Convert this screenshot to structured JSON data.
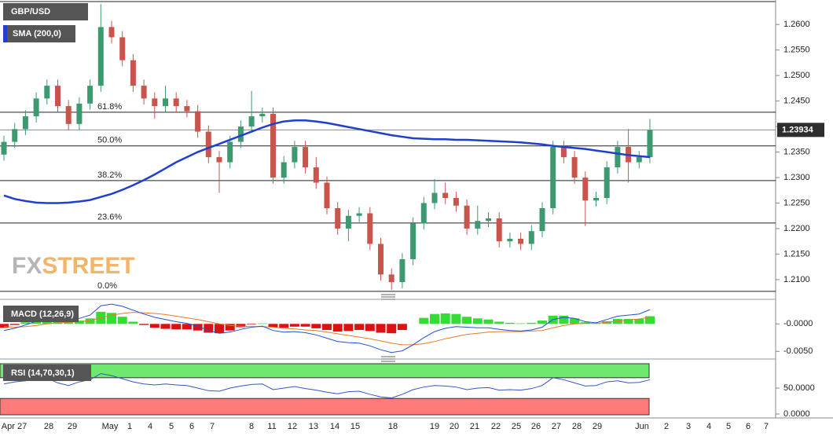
{
  "chart_data": [
    {
      "type": "candlestick",
      "title": "GBP/USD",
      "open": [
        1.2345,
        1.237,
        1.2395,
        1.242,
        1.2455,
        1.248,
        1.244,
        1.2405,
        1.2445,
        1.248,
        1.2595,
        1.2575,
        1.253,
        1.248,
        1.2455,
        1.244,
        1.2455,
        1.244,
        1.243,
        1.239,
        1.234,
        1.233,
        1.237,
        1.24,
        1.242,
        1.2425,
        1.23,
        1.233,
        1.236,
        1.232,
        1.229,
        1.224,
        1.22,
        1.2225,
        1.223,
        1.217,
        1.211,
        1.2095,
        1.214,
        1.221,
        1.225,
        1.227,
        1.226,
        1.2245,
        1.22,
        1.2215,
        1.222,
        1.2175,
        1.218,
        1.217,
        1.2195,
        1.224,
        1.236,
        1.234,
        1.23,
        1.2255,
        1.226,
        1.232,
        1.236,
        1.233,
        1.234
      ],
      "high": [
        1.2382,
        1.2407,
        1.2432,
        1.2467,
        1.2492,
        1.2492,
        1.2452,
        1.2457,
        1.2492,
        1.264,
        1.2607,
        1.2587,
        1.2542,
        1.2492,
        1.2467,
        1.248,
        1.2467,
        1.2452,
        1.2442,
        1.2402,
        1.2352,
        1.2382,
        1.2412,
        1.247,
        1.2437,
        1.2437,
        1.2342,
        1.2372,
        1.2372,
        1.234,
        1.2302,
        1.2252,
        1.2237,
        1.2242,
        1.2242,
        1.2182,
        1.2122,
        1.2152,
        1.2222,
        1.2262,
        1.2297,
        1.229,
        1.2272,
        1.2257,
        1.2245,
        1.2232,
        1.2232,
        1.2192,
        1.2192,
        1.2207,
        1.2252,
        1.2372,
        1.2372,
        1.2352,
        1.2312,
        1.2272,
        1.2332,
        1.2372,
        1.2395,
        1.2352,
        1.2415
      ],
      "low": [
        1.2333,
        1.2358,
        1.2383,
        1.2408,
        1.2443,
        1.2428,
        1.2393,
        1.2393,
        1.2433,
        1.2468,
        1.2563,
        1.2518,
        1.2468,
        1.2443,
        1.2415,
        1.2428,
        1.2428,
        1.2418,
        1.2378,
        1.2328,
        1.227,
        1.2318,
        1.2358,
        1.2388,
        1.2408,
        1.2288,
        1.2288,
        1.2318,
        1.2308,
        1.2278,
        1.2228,
        1.2188,
        1.2175,
        1.2213,
        1.2158,
        1.2098,
        1.208,
        1.2083,
        1.2128,
        1.2198,
        1.2238,
        1.2248,
        1.2233,
        1.2188,
        1.2188,
        1.2203,
        1.2163,
        1.2163,
        1.2158,
        1.2158,
        1.2183,
        1.2228,
        1.2328,
        1.2288,
        1.2205,
        1.2243,
        1.2248,
        1.2308,
        1.229,
        1.2318,
        1.2328
      ],
      "close": [
        1.237,
        1.2395,
        1.242,
        1.2455,
        1.248,
        1.244,
        1.2405,
        1.2445,
        1.248,
        1.2595,
        1.2575,
        1.253,
        1.248,
        1.2455,
        1.244,
        1.2455,
        1.244,
        1.243,
        1.239,
        1.234,
        1.233,
        1.237,
        1.24,
        1.242,
        1.2425,
        1.23,
        1.233,
        1.236,
        1.232,
        1.229,
        1.224,
        1.22,
        1.2225,
        1.223,
        1.217,
        1.211,
        1.2095,
        1.214,
        1.221,
        1.225,
        1.227,
        1.226,
        1.2245,
        1.22,
        1.2215,
        1.222,
        1.2175,
        1.218,
        1.217,
        1.2195,
        1.224,
        1.236,
        1.234,
        1.23,
        1.2255,
        1.226,
        1.232,
        1.236,
        1.233,
        1.234,
        1.2393
      ],
      "up_color": "#3d9a70",
      "down_color": "#c9544c",
      "sma": {
        "name": "SMA (200,0)",
        "color": "#1f3fd0",
        "values": [
          1.2265,
          1.2258,
          1.2254,
          1.2251,
          1.225,
          1.225,
          1.2251,
          1.2253,
          1.2256,
          1.2262,
          1.2268,
          1.2276,
          1.2285,
          1.2295,
          1.2306,
          1.2318,
          1.233,
          1.234,
          1.235,
          1.2358,
          1.2366,
          1.2374,
          1.2382,
          1.239,
          1.2398,
          1.2405,
          1.241,
          1.2412,
          1.2412,
          1.241,
          1.2407,
          1.2403,
          1.2399,
          1.2395,
          1.2391,
          1.2387,
          1.2383,
          1.238,
          1.2377,
          1.2376,
          1.2375,
          1.2375,
          1.2374,
          1.2374,
          1.2373,
          1.2372,
          1.2371,
          1.237,
          1.2369,
          1.2367,
          1.2365,
          1.2362,
          1.236,
          1.2358,
          1.2356,
          1.2353,
          1.235,
          1.2347,
          1.2344,
          1.2342,
          1.234
        ]
      },
      "ylim": [
        1.2066,
        1.2648
      ],
      "yticks": [
        {
          "value": 1.21,
          "label": "1.2100"
        },
        {
          "value": 1.215,
          "label": "1.2150"
        },
        {
          "value": 1.22,
          "label": "1.2200"
        },
        {
          "value": 1.225,
          "label": "1.2250"
        },
        {
          "value": 1.23,
          "label": "1.2300"
        },
        {
          "value": 1.235,
          "label": "1.2350"
        },
        {
          "value": 1.24,
          "label": "1.2400"
        },
        {
          "value": 1.245,
          "label": "1.2450"
        },
        {
          "value": 1.25,
          "label": "1.2500"
        },
        {
          "value": 1.255,
          "label": "1.2550"
        },
        {
          "value": 1.26,
          "label": "1.2600"
        }
      ],
      "fib_levels": [
        {
          "value": 1.2428,
          "label": "61.8%"
        },
        {
          "value": 1.2362,
          "label": "50.0%"
        },
        {
          "value": 1.2294,
          "label": "38.2%"
        },
        {
          "value": 1.2211,
          "label": "23.6%"
        },
        {
          "value": 1.2077,
          "label": "0.0%"
        }
      ],
      "last_price": 1.23934,
      "watermark": [
        "FX",
        "STREET"
      ],
      "x_labels": [
        "Apr 27",
        "28",
        "29",
        "May",
        "1",
        "4",
        "5",
        "6",
        "7",
        "8",
        "11",
        "12",
        "13",
        "14",
        "15",
        "18",
        "19",
        "20",
        "21",
        "22",
        "25",
        "26",
        "27",
        "28",
        "29",
        "Jun",
        "2",
        "3",
        "4",
        "5",
        "6",
        "7"
      ]
    },
    {
      "type": "macd",
      "title": "MACD (12,26,9)",
      "macd_color": "#2050d8",
      "signal_color": "#e87a2a",
      "up_color": "#33dd33",
      "down_color": "#dd1111",
      "macd": [
        -0.0012,
        -0.0008,
        -0.0002,
        0.0005,
        0.0012,
        0.001,
        0.0006,
        0.001,
        0.0016,
        0.0033,
        0.0036,
        0.0032,
        0.0025,
        0.0018,
        0.0012,
        0.0008,
        0.0004,
        0.0001,
        -0.0004,
        -0.0012,
        -0.0017,
        -0.0015,
        -0.001,
        -0.0006,
        -0.0004,
        -0.0012,
        -0.0015,
        -0.0014,
        -0.0016,
        -0.002,
        -0.0026,
        -0.0032,
        -0.0034,
        -0.0035,
        -0.004,
        -0.0047,
        -0.0052,
        -0.0049,
        -0.0038,
        -0.0025,
        -0.0014,
        -0.0008,
        -0.0005,
        -0.0006,
        -0.0007,
        -0.0007,
        -0.001,
        -0.0012,
        -0.0013,
        -0.0011,
        -0.0006,
        0.0008,
        0.0012,
        0.001,
        0.0004,
        0.0002,
        0.0008,
        0.0014,
        0.0016,
        0.0018,
        0.0026
      ],
      "signal": [
        -0.0005,
        -0.0006,
        -0.0005,
        -0.0003,
        0.0,
        0.0002,
        0.0003,
        0.0004,
        0.0006,
        0.0011,
        0.0016,
        0.0019,
        0.0021,
        0.002,
        0.0019,
        0.0017,
        0.0014,
        0.0011,
        0.0008,
        0.0004,
        0.0,
        -0.0003,
        -0.0004,
        -0.0005,
        -0.0005,
        -0.0006,
        -0.0008,
        -0.0009,
        -0.0011,
        -0.0012,
        -0.0015,
        -0.0018,
        -0.0021,
        -0.0024,
        -0.0027,
        -0.0031,
        -0.0035,
        -0.0038,
        -0.0038,
        -0.0036,
        -0.0032,
        -0.0027,
        -0.0023,
        -0.0019,
        -0.0017,
        -0.0015,
        -0.0014,
        -0.0014,
        -0.0014,
        -0.0013,
        -0.0012,
        -0.0007,
        -0.0003,
        0.0,
        0.0001,
        0.0001,
        0.0003,
        0.0005,
        0.0007,
        0.0009,
        0.0012
      ],
      "histogram": [
        -0.0007,
        -0.0002,
        0.0003,
        0.0008,
        0.0012,
        0.0008,
        0.0003,
        0.0006,
        0.001,
        0.0022,
        0.002,
        0.0013,
        0.0004,
        -0.0002,
        -0.0007,
        -0.0009,
        -0.001,
        -0.001,
        -0.0012,
        -0.0016,
        -0.0017,
        -0.0012,
        -0.0006,
        -0.0001,
        0.0001,
        -0.0006,
        -0.0007,
        -0.0005,
        -0.0005,
        -0.0008,
        -0.0011,
        -0.0014,
        -0.0013,
        -0.0011,
        -0.0013,
        -0.0016,
        -0.0017,
        -0.0011,
        0.0,
        0.0011,
        0.0018,
        0.0019,
        0.0018,
        0.0013,
        0.001,
        0.0008,
        0.0004,
        0.0002,
        0.0001,
        0.0002,
        0.0006,
        0.0015,
        0.0015,
        0.001,
        0.0003,
        0.0001,
        0.0005,
        0.0009,
        0.0009,
        0.0009,
        0.0014
      ],
      "ylim": [
        -0.0061,
        0.0039
      ],
      "yticks": [
        {
          "value": 0,
          "label": "-0.0000"
        },
        {
          "value": -0.005,
          "label": "-0.0050"
        }
      ]
    },
    {
      "type": "rsi",
      "title": "RSI (14,70,30,1)",
      "color": "#3355cc",
      "overbought": 70,
      "oversold": 30,
      "overbought_color": "#6ee86e",
      "oversold_color": "#ff7b7b",
      "values": [
        58,
        62,
        64,
        67,
        69,
        60,
        55,
        62,
        66,
        78,
        74,
        68,
        62,
        58,
        56,
        58,
        56,
        55,
        50,
        45,
        44,
        50,
        54,
        57,
        58,
        47,
        50,
        53,
        49,
        46,
        42,
        39,
        43,
        44,
        38,
        33,
        31,
        38,
        47,
        52,
        55,
        54,
        52,
        47,
        50,
        51,
        46,
        47,
        46,
        49,
        55,
        70,
        66,
        60,
        54,
        55,
        62,
        64,
        60,
        61,
        66
      ],
      "ylim": [
        -4.5,
        101.5
      ],
      "yticks": [
        {
          "value": 50,
          "label": "50.0000"
        },
        {
          "value": 0,
          "label": "0.0000"
        }
      ]
    }
  ]
}
